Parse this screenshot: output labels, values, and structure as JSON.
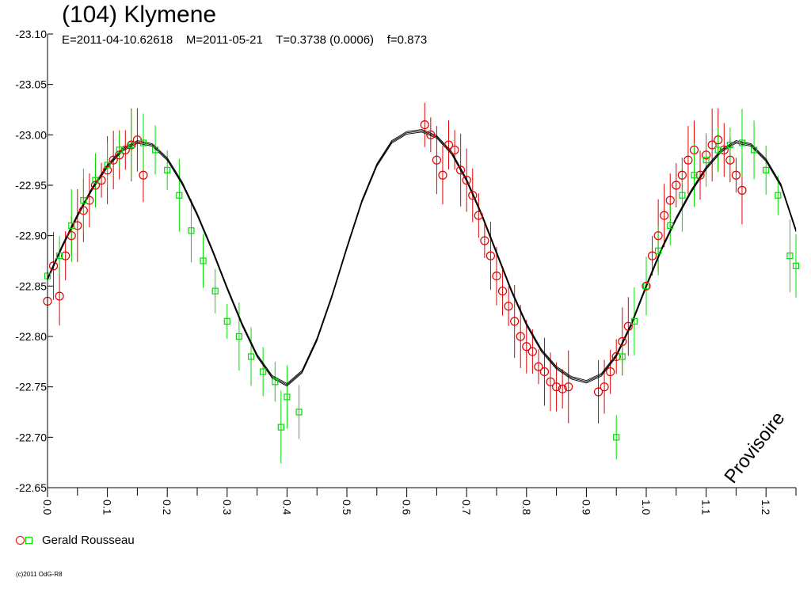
{
  "header": {
    "title": "(104) Klymene",
    "subtitle": "E=2011-04-10.62618    M=2011-05-21    T=0.3738 (0.0006)    f=0.873"
  },
  "watermark": "Provisoire",
  "legend": {
    "label": "Gerald Rousseau"
  },
  "footer": {
    "copyright": "(c)2011 OdG-R8"
  },
  "colors": {
    "series_red": "#e00000",
    "series_green": "#00dd00",
    "curve": "#000000"
  },
  "chart_data": {
    "type": "scatter",
    "title": "(104) Klymene",
    "xlabel": "",
    "ylabel": "",
    "xlim": [
      0,
      1.25
    ],
    "ylim": [
      -23.1,
      -22.65
    ],
    "y_inverted": true,
    "grid": false,
    "legend_position": "bottom-left",
    "y_ticks": [
      "-23.10",
      "-23.05",
      "-23.00",
      "-22.95",
      "-22.90",
      "-22.85",
      "-22.80",
      "-22.75",
      "-22.70",
      "-22.65"
    ],
    "x_ticks": [
      "0.0",
      "0.1",
      "0.2",
      "0.3",
      "0.4",
      "0.5",
      "0.6",
      "0.7",
      "0.8",
      "0.9",
      "1.0",
      "1.1",
      "1.2"
    ],
    "fit_curve": {
      "x": [
        0,
        0.025,
        0.05,
        0.075,
        0.1,
        0.125,
        0.15,
        0.175,
        0.2,
        0.225,
        0.25,
        0.275,
        0.3,
        0.325,
        0.35,
        0.375,
        0.4,
        0.425,
        0.45,
        0.475,
        0.5,
        0.525,
        0.55,
        0.575,
        0.6,
        0.625,
        0.65,
        0.675,
        0.7,
        0.725,
        0.75,
        0.775,
        0.8,
        0.825,
        0.85,
        0.875,
        0.9,
        0.925,
        0.95,
        0.975,
        1.0,
        1.025,
        1.05,
        1.075,
        1.1,
        1.125,
        1.15,
        1.175,
        1.2,
        1.225,
        1.25
      ],
      "y": [
        -22.857,
        -22.89,
        -22.92,
        -22.947,
        -22.969,
        -22.985,
        -22.993,
        -22.99,
        -22.976,
        -22.952,
        -22.921,
        -22.886,
        -22.848,
        -22.812,
        -22.781,
        -22.76,
        -22.752,
        -22.765,
        -22.797,
        -22.84,
        -22.888,
        -22.934,
        -22.97,
        -22.993,
        -23.002,
        -23.004,
        -22.998,
        -22.982,
        -22.955,
        -22.921,
        -22.883,
        -22.845,
        -22.812,
        -22.786,
        -22.769,
        -22.759,
        -22.755,
        -22.762,
        -22.781,
        -22.812,
        -22.85,
        -22.886,
        -22.917,
        -22.944,
        -22.967,
        -22.984,
        -22.993,
        -22.99,
        -22.975,
        -22.95,
        -22.905
      ]
    },
    "series": [
      {
        "name": "Gerald Rousseau",
        "color": "#e00000",
        "marker": "circle",
        "x": [
          0.0,
          0.01,
          0.02,
          0.03,
          0.04,
          0.05,
          0.06,
          0.07,
          0.08,
          0.09,
          0.1,
          0.11,
          0.12,
          0.13,
          0.14,
          0.15,
          0.16,
          0.63,
          0.64,
          0.65,
          0.66,
          0.67,
          0.68,
          0.69,
          0.7,
          0.71,
          0.72,
          0.73,
          0.74,
          0.75,
          0.76,
          0.77,
          0.78,
          0.79,
          0.8,
          0.81,
          0.82,
          0.83,
          0.84,
          0.85,
          0.86,
          0.87,
          0.92,
          0.93,
          0.94,
          0.95,
          0.96,
          0.97,
          1.0,
          1.01,
          1.02,
          1.03,
          1.04,
          1.05,
          1.06,
          1.07,
          1.08,
          1.09,
          1.1,
          1.11,
          1.12,
          1.13,
          1.14,
          1.15,
          1.16
        ],
        "y": [
          -22.835,
          -22.87,
          -22.84,
          -22.88,
          -22.9,
          -22.91,
          -22.925,
          -22.935,
          -22.95,
          -22.955,
          -22.965,
          -22.975,
          -22.98,
          -22.985,
          -22.99,
          -22.995,
          -22.96,
          -23.01,
          -23.0,
          -22.975,
          -22.96,
          -22.99,
          -22.985,
          -22.965,
          -22.955,
          -22.94,
          -22.92,
          -22.895,
          -22.88,
          -22.86,
          -22.845,
          -22.83,
          -22.815,
          -22.8,
          -22.79,
          -22.785,
          -22.77,
          -22.765,
          -22.755,
          -22.75,
          -22.748,
          -22.75,
          -22.745,
          -22.75,
          -22.765,
          -22.78,
          -22.795,
          -22.81,
          -22.85,
          -22.88,
          -22.9,
          -22.92,
          -22.935,
          -22.95,
          -22.96,
          -22.975,
          -22.985,
          -22.96,
          -22.98,
          -22.99,
          -22.995,
          -22.985,
          -22.975,
          -22.96,
          -22.945
        ]
      },
      {
        "name": "Gerald Rousseau",
        "color": "#00dd00",
        "marker": "square",
        "x": [
          0.0,
          0.02,
          0.04,
          0.06,
          0.08,
          0.1,
          0.12,
          0.14,
          0.16,
          0.18,
          0.2,
          0.22,
          0.24,
          0.26,
          0.28,
          0.3,
          0.32,
          0.34,
          0.36,
          0.38,
          0.39,
          0.4,
          0.42,
          0.95,
          0.96,
          0.98,
          1.0,
          1.02,
          1.04,
          1.06,
          1.08,
          1.1,
          1.12,
          1.14,
          1.16,
          1.18,
          1.2,
          1.22,
          1.24,
          1.25
        ],
        "y": [
          -22.86,
          -22.88,
          -22.91,
          -22.935,
          -22.955,
          -22.97,
          -22.985,
          -22.99,
          -22.992,
          -22.985,
          -22.965,
          -22.94,
          -22.905,
          -22.875,
          -22.845,
          -22.815,
          -22.8,
          -22.78,
          -22.765,
          -22.755,
          -22.71,
          -22.74,
          -22.725,
          -22.7,
          -22.78,
          -22.815,
          -22.85,
          -22.885,
          -22.91,
          -22.94,
          -22.96,
          -22.975,
          -22.985,
          -22.99,
          -22.992,
          -22.985,
          -22.965,
          -22.94,
          -22.88,
          -22.87
        ]
      }
    ]
  }
}
